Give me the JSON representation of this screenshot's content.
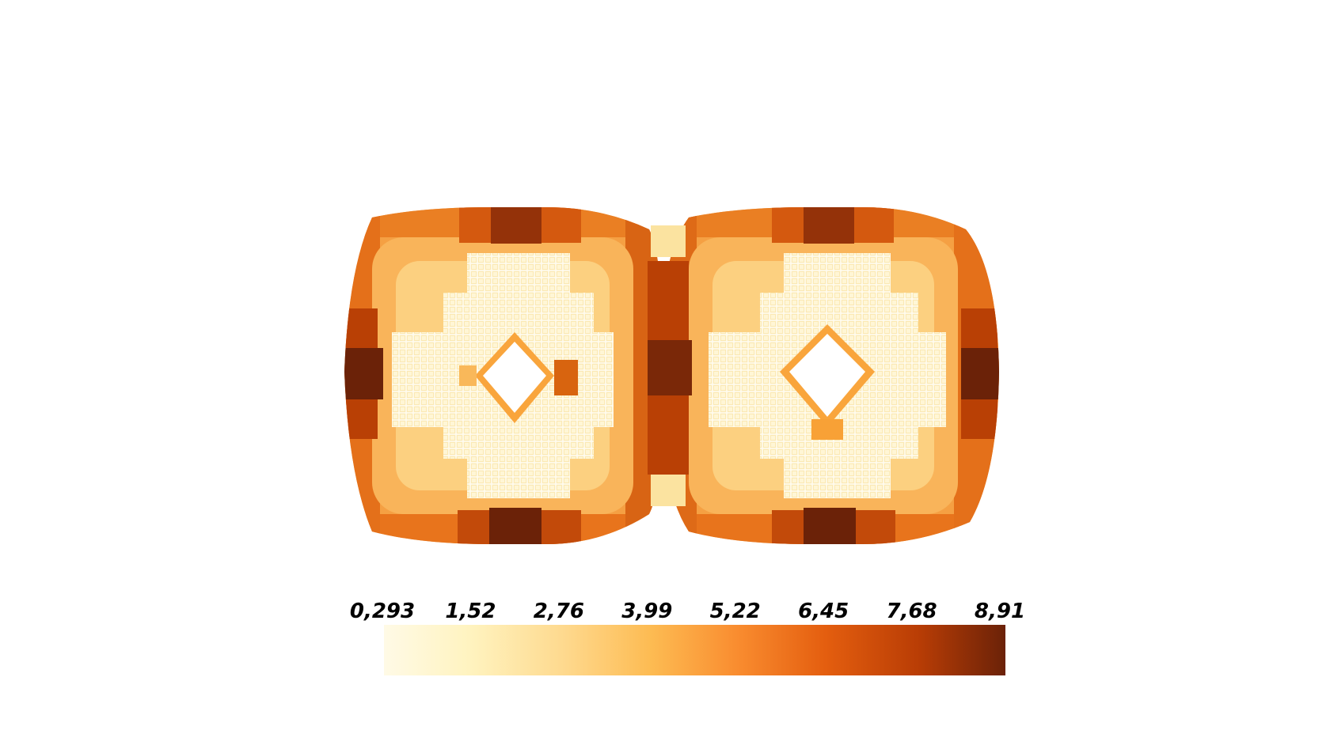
{
  "scene": {
    "mesh": "voxel-field",
    "lobes": 2
  },
  "colorbar": {
    "ticks": [
      "0,293",
      "1,52",
      "2,76",
      "3,99",
      "5,22",
      "6,45",
      "7,68",
      "8,91"
    ],
    "min": 0.293,
    "max": 8.91,
    "colormap": [
      "#fffae6",
      "#fff3bf",
      "#fed98e",
      "#fdbb52",
      "#f98c2f",
      "#e45e0f",
      "#b93d05",
      "#6b2208"
    ]
  }
}
